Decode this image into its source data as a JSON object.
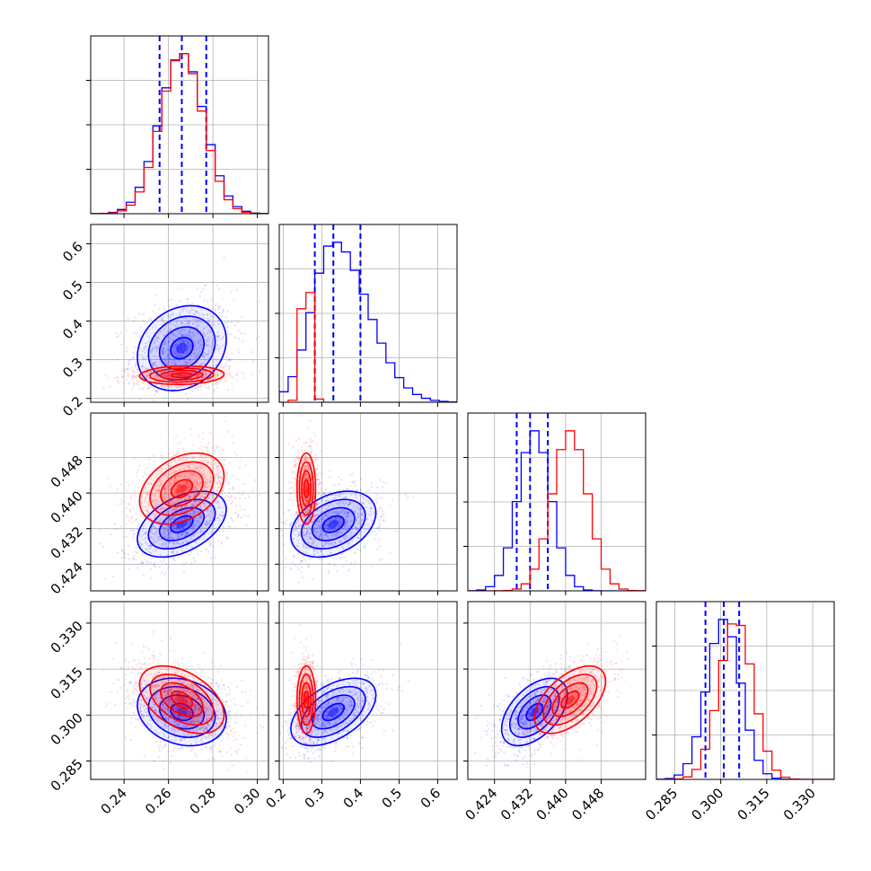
{
  "chart_data": {
    "type": "corner",
    "n_params": 4,
    "axis_labels": [
      "",
      "",
      "",
      ""
    ],
    "ranges": [
      [
        0.225,
        0.305
      ],
      [
        0.19,
        0.65
      ],
      [
        0.418,
        0.458
      ],
      [
        0.279,
        0.337
      ]
    ],
    "ticks": [
      {
        "values": [
          0.24,
          0.26,
          0.28,
          0.3
        ],
        "labels": [
          "0.24",
          "0.26",
          "0.28",
          "0.30"
        ]
      },
      {
        "values": [
          0.2,
          0.3,
          0.4,
          0.5,
          0.6
        ],
        "labels": [
          "0.2",
          "0.3",
          "0.4",
          "0.5",
          "0.6"
        ]
      },
      {
        "values": [
          0.424,
          0.432,
          0.44,
          0.448
        ],
        "labels": [
          "0.424",
          "0.432",
          "0.440",
          "0.448"
        ]
      },
      {
        "values": [
          0.285,
          0.3,
          0.315,
          0.33
        ],
        "labels": [
          "0.285",
          "0.300",
          "0.315",
          "0.330"
        ]
      }
    ],
    "grid": true,
    "series": [
      {
        "color": "#0000ff",
        "mean": [
          0.266,
          0.33,
          0.433,
          0.301
        ],
        "sd": [
          0.01,
          0.055,
          0.0037,
          0.0055
        ],
        "quantiles": [
          [
            0.256,
            0.266,
            0.277
          ],
          [
            0.282,
            0.33,
            0.4
          ],
          [
            0.429,
            0.432,
            0.436
          ],
          [
            0.295,
            0.301,
            0.306
          ]
        ],
        "correlations": [
          [
            0,
            1,
            0.2
          ],
          [
            0,
            2,
            0.45
          ],
          [
            0,
            3,
            -0.2
          ],
          [
            1,
            2,
            0.35
          ],
          [
            1,
            3,
            0.5
          ],
          [
            2,
            3,
            0.5
          ]
        ]
      },
      {
        "color": "#ff0000",
        "mean": [
          0.266,
          0.26,
          0.441,
          0.305
        ],
        "sd": [
          0.0095,
          0.012,
          0.004,
          0.0055
        ],
        "quantiles": [],
        "correlations": [
          [
            0,
            1,
            0.1
          ],
          [
            0,
            2,
            0.35
          ],
          [
            0,
            3,
            -0.45
          ],
          [
            1,
            2,
            0.0
          ],
          [
            1,
            3,
            0.0
          ],
          [
            2,
            3,
            0.55
          ]
        ]
      }
    ]
  }
}
